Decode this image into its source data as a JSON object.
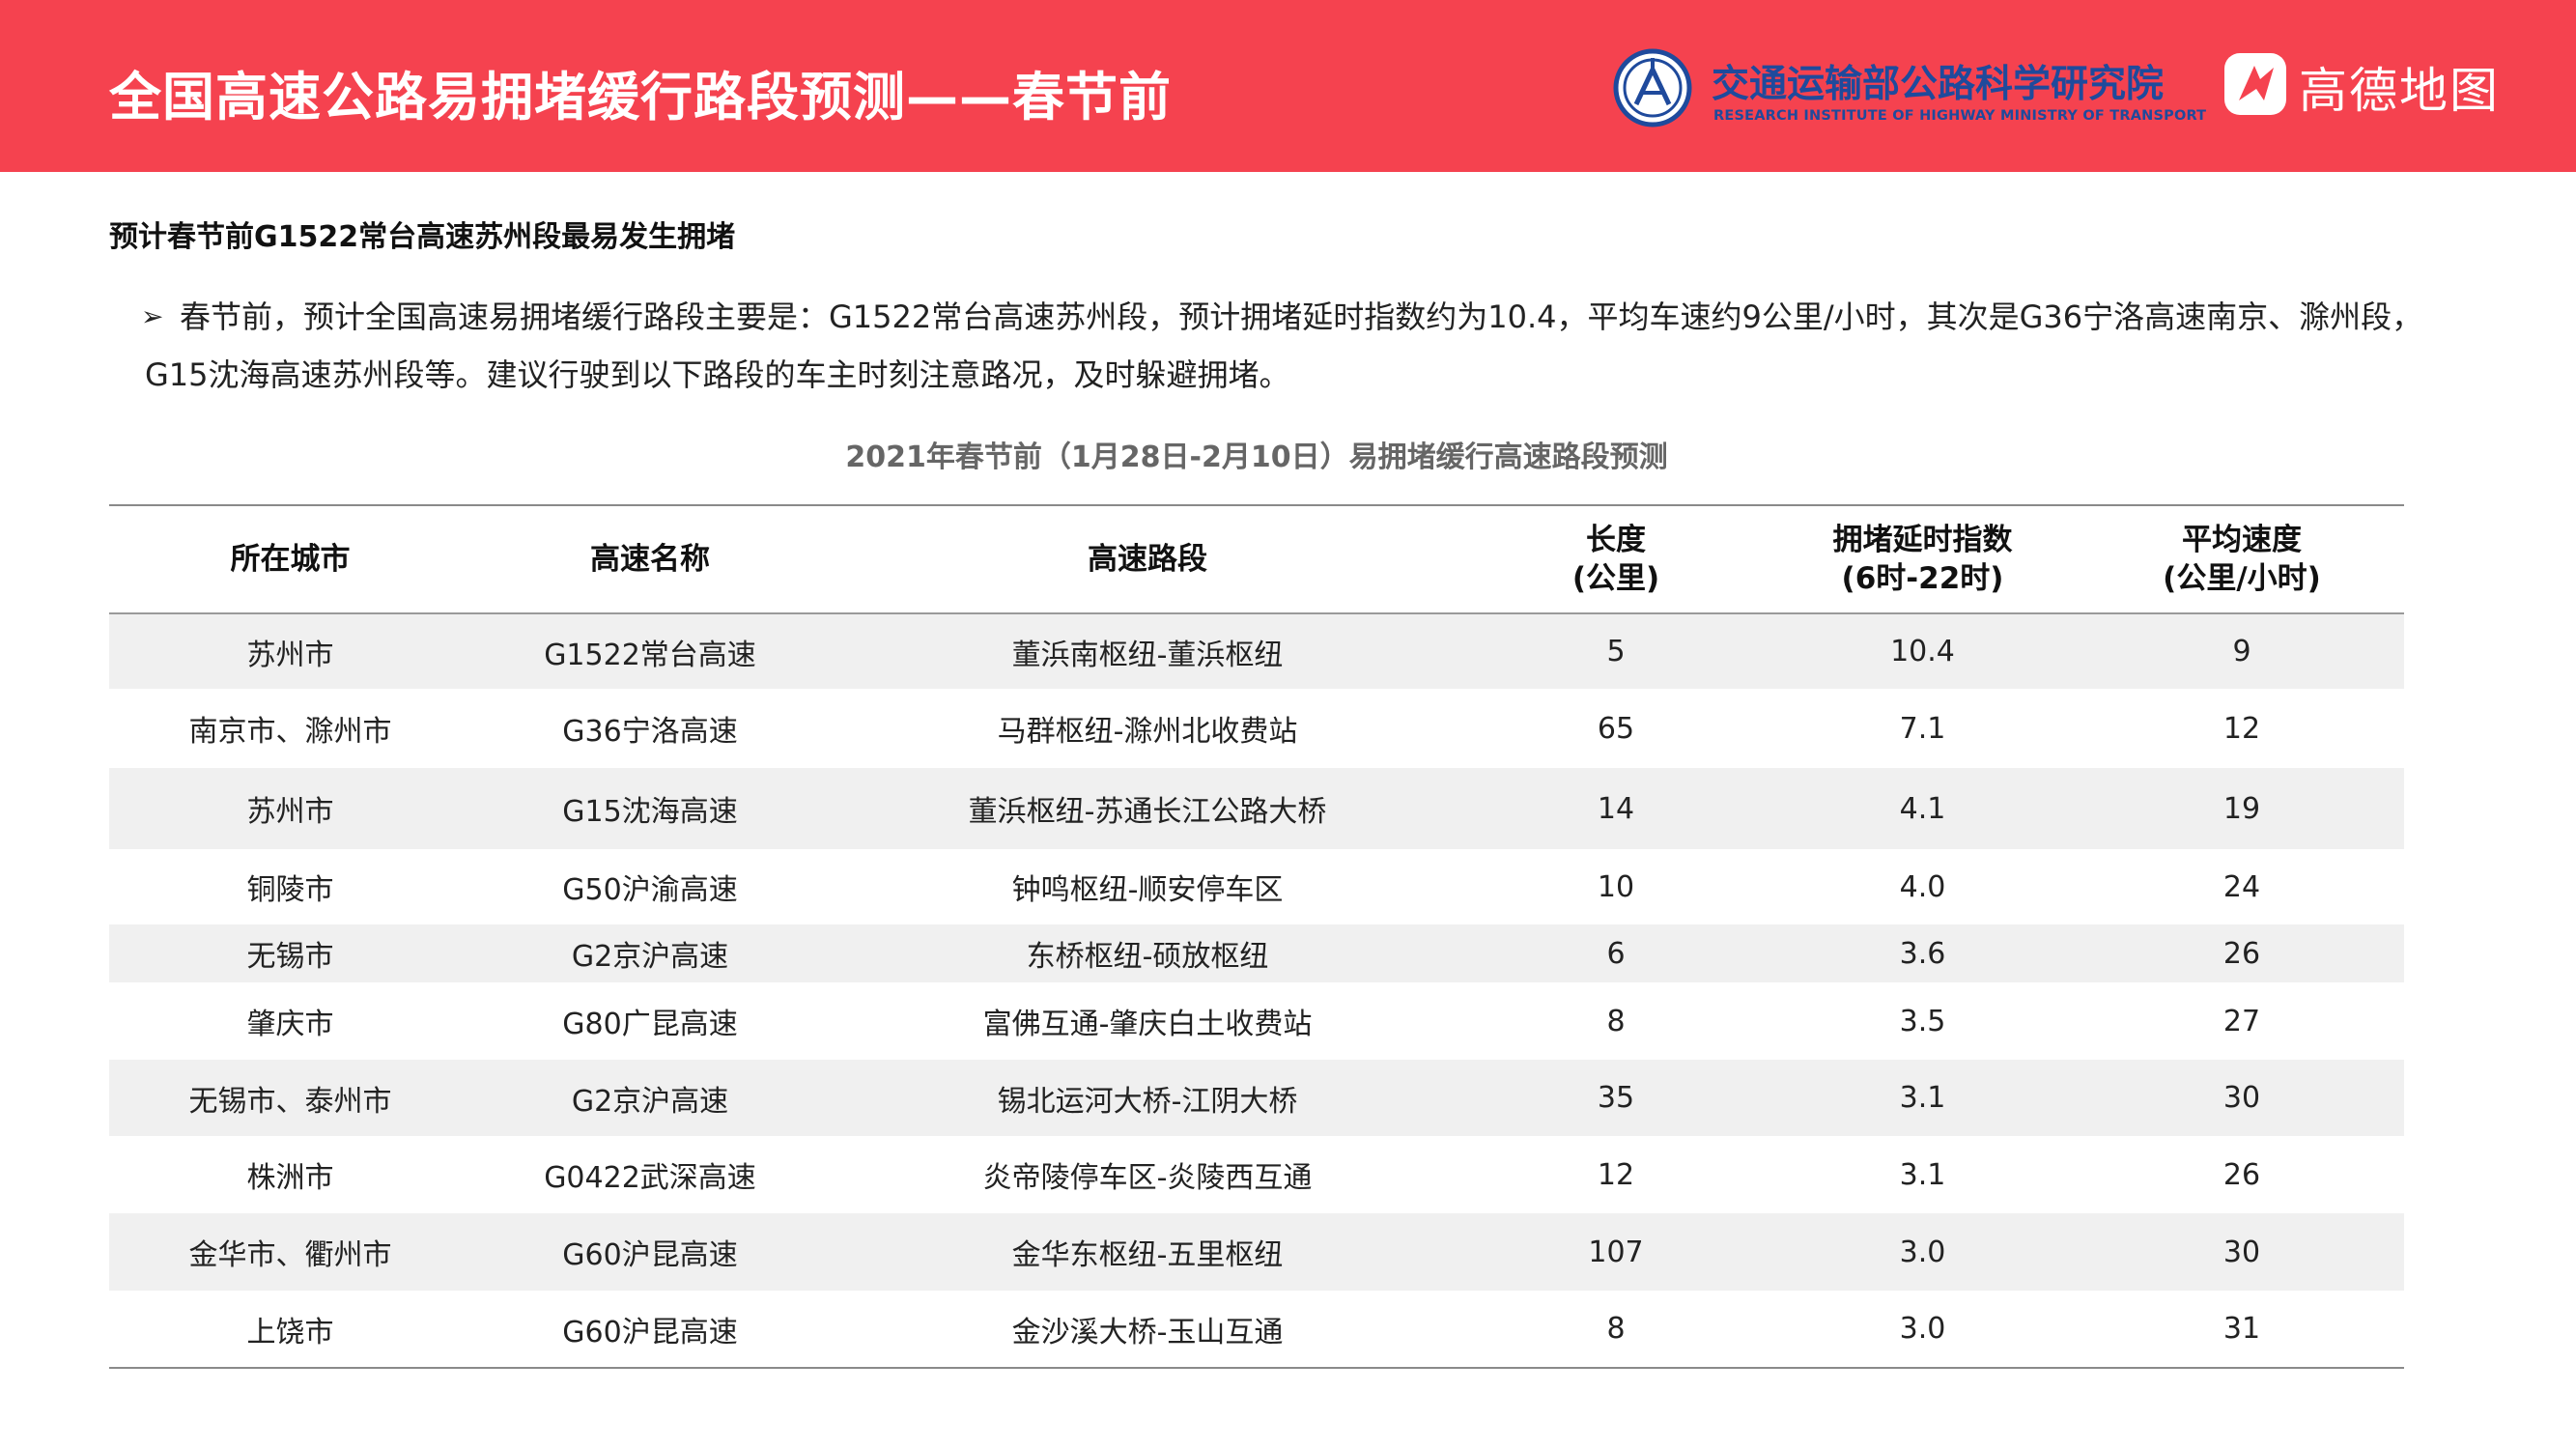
{
  "header": {
    "title": "全国高速公路易拥堵缓行路段预测——春节前",
    "org_name": "交通运输部公路科学研究院",
    "org_name_en": "RESEARCH INSTITUTE OF HIGHWAY MINISTRY OF TRANSPORT",
    "amap_name": "高德地图"
  },
  "colors": {
    "header_bg": "#f5424f",
    "org_blue": "#1f4a9c"
  },
  "subheading": "预计春节前G1522常台高速苏州段最易发生拥堵",
  "bullet": {
    "mark": "➢",
    "text": "春节前，预计全国高速易拥堵缓行路段主要是：G1522常台高速苏州段，预计拥堵延时指数约为10.4，平均车速约9公里/小时，其次是G36宁洛高速南京、滁州段，G15沈海高速苏州段等。建议行驶到以下路段的车主时刻注意路况，及时躲避拥堵。"
  },
  "table": {
    "caption": "2021年春节前（1月28日-2月10日）易拥堵缓行高速路段预测",
    "headers": [
      {
        "l1": "所在城市",
        "l2": ""
      },
      {
        "l1": "高速名称",
        "l2": ""
      },
      {
        "l1": "高速路段",
        "l2": ""
      },
      {
        "l1": "长度",
        "l2": "(公里)"
      },
      {
        "l1": "拥堵延时指数",
        "l2": "(6时-22时)"
      },
      {
        "l1": "平均速度",
        "l2": "(公里/小时)"
      }
    ],
    "rows": [
      [
        "苏州市",
        "G1522常台高速",
        "董浜南枢纽-董浜枢纽",
        "5",
        "10.4",
        "9"
      ],
      [
        "南京市、滁州市",
        "G36宁洛高速",
        "马群枢纽-滁州北收费站",
        "65",
        "7.1",
        "12"
      ],
      [
        "苏州市",
        "G15沈海高速",
        "董浜枢纽-苏通长江公路大桥",
        "14",
        "4.1",
        "19"
      ],
      [
        "铜陵市",
        "G50沪渝高速",
        "钟鸣枢纽-顺安停车区",
        "10",
        "4.0",
        "24"
      ],
      [
        "无锡市",
        "G2京沪高速",
        "东桥枢纽-硕放枢纽",
        "6",
        "3.6",
        "26"
      ],
      [
        "肇庆市",
        "G80广昆高速",
        "富佛互通-肇庆白土收费站",
        "8",
        "3.5",
        "27"
      ],
      [
        "无锡市、泰州市",
        "G2京沪高速",
        "锡北运河大桥-江阴大桥",
        "35",
        "3.1",
        "30"
      ],
      [
        "株洲市",
        "G0422武深高速",
        "炎帝陵停车区-炎陵西互通",
        "12",
        "3.1",
        "26"
      ],
      [
        "金华市、衢州市",
        "G60沪昆高速",
        "金华东枢纽-五里枢纽",
        "107",
        "3.0",
        "30"
      ],
      [
        "上饶市",
        "G60沪昆高速",
        "金沙溪大桥-玉山互通",
        "8",
        "3.0",
        "31"
      ]
    ]
  }
}
